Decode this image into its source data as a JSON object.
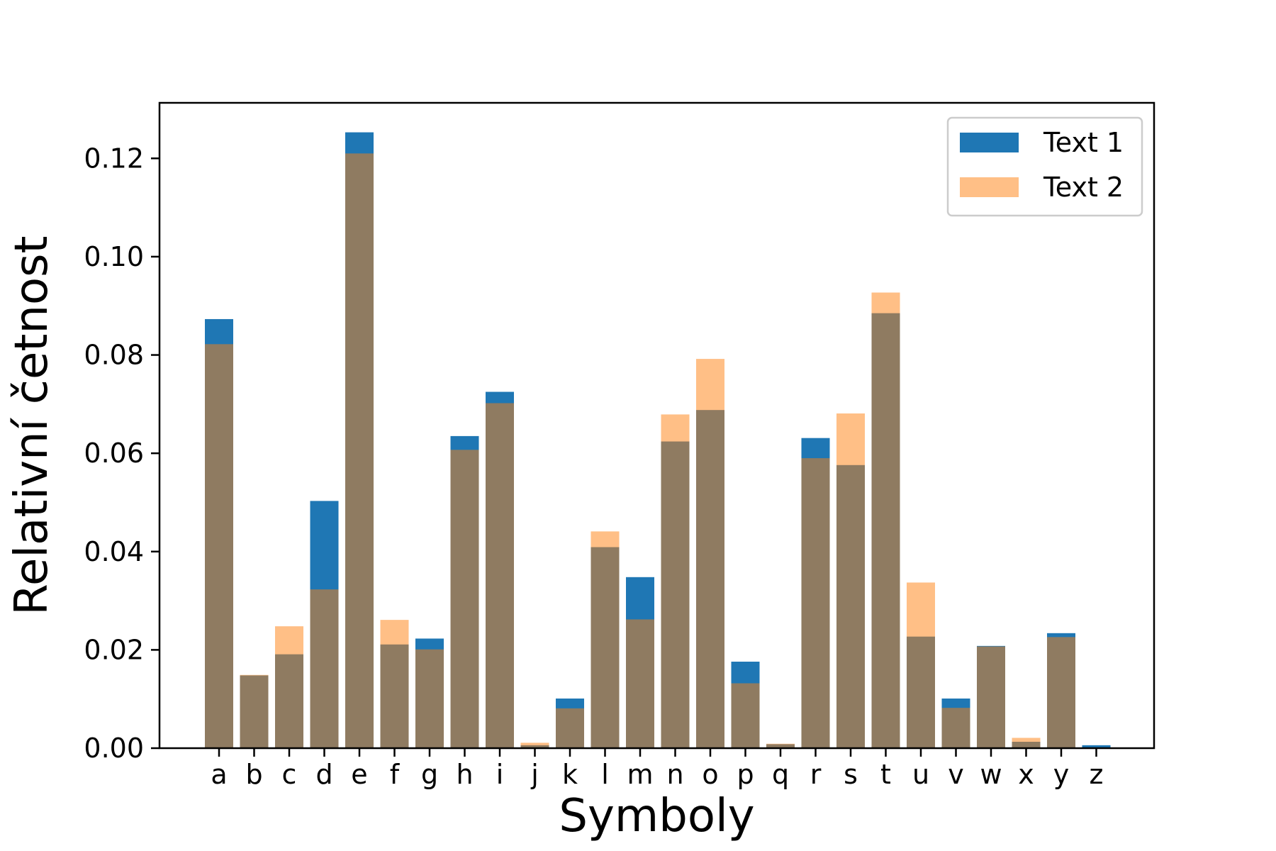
{
  "chart_data": {
    "type": "bar",
    "title": "",
    "xlabel": "Symboly",
    "ylabel": "Relativní četnost",
    "categories": [
      "a",
      "b",
      "c",
      "d",
      "e",
      "f",
      "g",
      "h",
      "i",
      "j",
      "k",
      "l",
      "m",
      "n",
      "o",
      "p",
      "q",
      "r",
      "s",
      "t",
      "u",
      "v",
      "w",
      "x",
      "y",
      "z"
    ],
    "ylim": [
      0,
      0.1313
    ],
    "yticks": [
      "0.00",
      "0.02",
      "0.04",
      "0.06",
      "0.08",
      "0.10",
      "0.12"
    ],
    "grid": false,
    "legend_position": "top-right",
    "series": [
      {
        "name": "Text 1",
        "color": "#1f77b4",
        "opacity": 1.0,
        "values": [
          0.0873,
          0.0148,
          0.0191,
          0.0503,
          0.1253,
          0.0211,
          0.0223,
          0.0635,
          0.0725,
          0.0006,
          0.0101,
          0.0409,
          0.0348,
          0.0624,
          0.0688,
          0.0176,
          0.0008,
          0.0631,
          0.0576,
          0.0885,
          0.0227,
          0.0101,
          0.0208,
          0.0013,
          0.0234,
          0.0006
        ]
      },
      {
        "name": "Text 2",
        "color": "#ff7f0e",
        "opacity": 0.5,
        "values": [
          0.0822,
          0.0149,
          0.0248,
          0.0323,
          0.121,
          0.0261,
          0.0201,
          0.0607,
          0.0702,
          0.0011,
          0.0081,
          0.0441,
          0.0262,
          0.0679,
          0.0792,
          0.0132,
          0.0009,
          0.059,
          0.0681,
          0.0927,
          0.0337,
          0.0082,
          0.0207,
          0.0021,
          0.0226,
          0.0001
        ]
      }
    ]
  }
}
